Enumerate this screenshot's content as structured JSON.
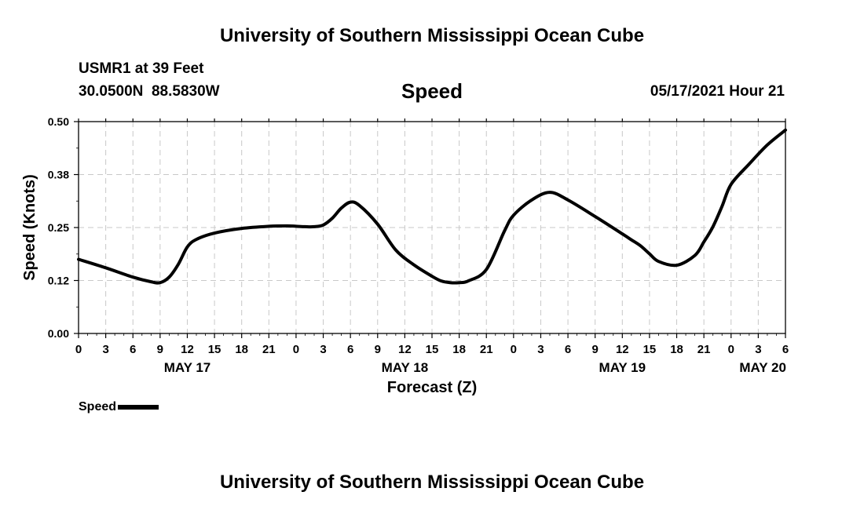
{
  "header": {
    "title": "University of Southern Mississippi Ocean Cube",
    "station": "USMR1 at 39 Feet",
    "coords": "30.0500N  88.5830W",
    "chart_name": "Speed",
    "forecast_time": "05/17/2021 Hour 21"
  },
  "footer": {
    "title": "University of Southern Mississippi Ocean Cube"
  },
  "legend": {
    "label": "Speed"
  },
  "colors": {
    "line": "#000000",
    "grid": "#c8c8c8",
    "background": "#ffffff"
  },
  "chart_data": {
    "type": "line",
    "xlabel": "Forecast (Z)",
    "ylabel": "Speed (Knots)",
    "ylim": [
      0,
      0.5
    ],
    "yticks": [
      "0.00",
      "0.12",
      "0.25",
      "0.38",
      "0.50"
    ],
    "xlim": [
      0,
      78
    ],
    "xtick_labels": [
      "0",
      "3",
      "6",
      "9",
      "12",
      "15",
      "18",
      "21",
      "0",
      "3",
      "6",
      "9",
      "12",
      "15",
      "18",
      "21",
      "0",
      "3",
      "6",
      "9",
      "12",
      "15",
      "18",
      "21",
      "0",
      "3",
      "6"
    ],
    "date_labels": [
      {
        "label": "MAY 17",
        "hour": 12
      },
      {
        "label": "MAY 18",
        "hour": 36
      },
      {
        "label": "MAY 19",
        "hour": 60
      },
      {
        "label": "MAY 20",
        "hour": 75.5
      }
    ],
    "grid": true,
    "series": [
      {
        "name": "Speed",
        "x": [
          0,
          3,
          6,
          8,
          9,
          10,
          11,
          12,
          13,
          15,
          18,
          21,
          23,
          24,
          25,
          26,
          27,
          28,
          29,
          30,
          31,
          33,
          35,
          37,
          39,
          40,
          41,
          42,
          43,
          45,
          47,
          48,
          50,
          52,
          54,
          57,
          60,
          61,
          62,
          63,
          64,
          66,
          68,
          69,
          70,
          71,
          72,
          74,
          76,
          78
        ],
        "y": [
          0.175,
          0.155,
          0.133,
          0.122,
          0.12,
          0.133,
          0.163,
          0.204,
          0.222,
          0.237,
          0.248,
          0.253,
          0.254,
          0.253,
          0.252,
          0.252,
          0.256,
          0.272,
          0.296,
          0.31,
          0.302,
          0.258,
          0.197,
          0.162,
          0.135,
          0.124,
          0.12,
          0.12,
          0.124,
          0.151,
          0.242,
          0.279,
          0.315,
          0.333,
          0.315,
          0.276,
          0.235,
          0.221,
          0.207,
          0.188,
          0.17,
          0.161,
          0.184,
          0.216,
          0.252,
          0.3,
          0.352,
          0.4,
          0.445,
          0.48
        ]
      }
    ]
  }
}
